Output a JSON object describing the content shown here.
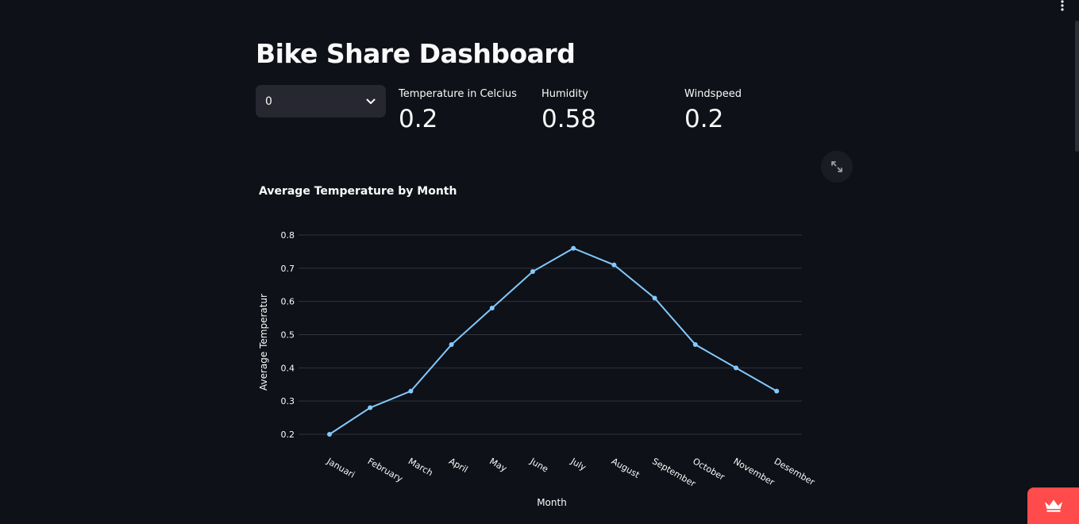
{
  "page": {
    "title": "Bike Share Dashboard"
  },
  "selector": {
    "value": "0"
  },
  "metrics": [
    {
      "label": "Temperature in Celcius",
      "value": "0.2"
    },
    {
      "label": "Humidity",
      "value": "0.58"
    },
    {
      "label": "Windspeed",
      "value": "0.2"
    }
  ],
  "icons": {
    "menu": "vertical-dots-icon",
    "dropdown": "chevron-down-icon",
    "fullscreen": "expand-icon",
    "badge": "crown-icon"
  },
  "colors": {
    "background": "#0e1117",
    "line": "#83c9ff",
    "grid": "#31333f",
    "badge": "#ff4b4b"
  },
  "chart_data": {
    "type": "line",
    "title": "Average Temperature by Month",
    "xlabel": "Month",
    "ylabel": "Average Temperatur",
    "categories": [
      "Januari",
      "February",
      "March",
      "April",
      "May",
      "June",
      "July",
      "August",
      "September",
      "October",
      "November",
      "Desember"
    ],
    "series": [
      {
        "name": "Average Temperature",
        "values": [
          0.2,
          0.28,
          0.33,
          0.47,
          0.58,
          0.69,
          0.76,
          0.71,
          0.61,
          0.47,
          0.4,
          0.33
        ]
      }
    ],
    "yticks": [
      "0.2",
      "0.3",
      "0.4",
      "0.5",
      "0.6",
      "0.7",
      "0.8"
    ],
    "ylim": [
      0.2,
      0.8
    ],
    "grid": true
  }
}
